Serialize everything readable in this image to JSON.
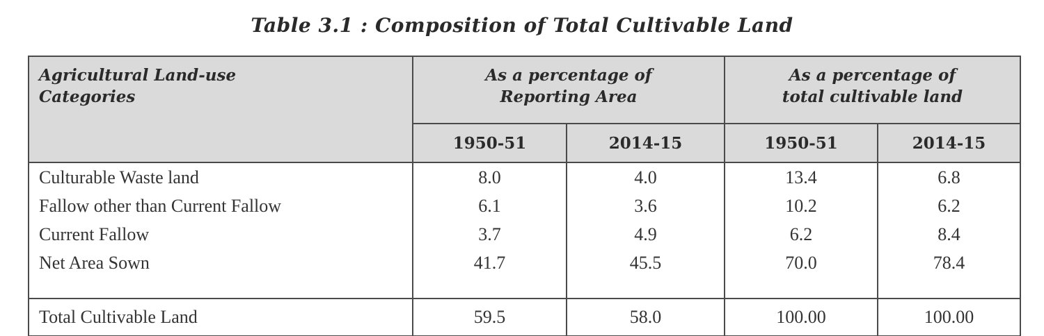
{
  "title": "Table 3.1 : Composition of Total Cultivable Land",
  "header": {
    "category_label_line1": "Agricultural Land-use",
    "category_label_line2": "Categories",
    "group1_line1": "As a percentage of",
    "group1_line2": "Reporting Area",
    "group2_line1": "As a percentage of",
    "group2_line2": "total cultivable land",
    "years": [
      "1950-51",
      "2014-15",
      "1950-51",
      "2014-15"
    ]
  },
  "rows": [
    {
      "category": "Culturable Waste land",
      "values": [
        "8.0",
        "4.0",
        "13.4",
        "6.8"
      ]
    },
    {
      "category": "Fallow other than Current Fallow",
      "values": [
        "6.1",
        "3.6",
        "10.2",
        "6.2"
      ]
    },
    {
      "category": "Current Fallow",
      "values": [
        "3.7",
        "4.9",
        "6.2",
        "8.4"
      ]
    },
    {
      "category": "Net Area Sown",
      "values": [
        "41.7",
        "45.5",
        "70.0",
        "78.4"
      ]
    }
  ],
  "total": {
    "category": "Total Cultivable Land",
    "values": [
      "59.5",
      "58.0",
      "100.00",
      "100.00"
    ]
  }
}
